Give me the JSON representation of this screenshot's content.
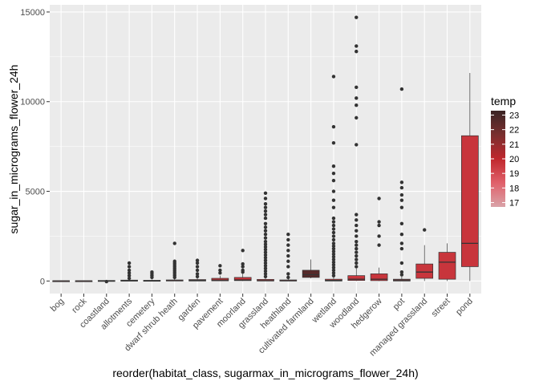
{
  "chart_data": {
    "type": "box",
    "xlabel": "reorder(habitat_class, sugarmax_in_micrograms_flower_24h)",
    "ylabel": "sugar_in_micrograms_flower_24h",
    "ylim": [
      -700,
      15400
    ],
    "yticks": [
      0,
      5000,
      10000,
      15000
    ],
    "ytick_labels": [
      "0",
      "5000",
      "10000",
      "15000"
    ],
    "grid": true,
    "panel_background": "#ebebeb",
    "categories": [
      "bog",
      "rock",
      "coastland",
      "allotments",
      "cemetery",
      "dwarf shrub heath",
      "garden",
      "pavement",
      "moorland",
      "grassland",
      "heathland",
      "cultivated farmland",
      "wetland",
      "woodland",
      "hedgerow",
      "pot",
      "managed grassland",
      "street",
      "pond"
    ],
    "boxes": [
      {
        "q1": 0,
        "median": 5,
        "q3": 15,
        "low": 0,
        "high": 25,
        "temp": 19.6,
        "outliers": []
      },
      {
        "q1": 0,
        "median": 5,
        "q3": 15,
        "low": 0,
        "high": 25,
        "temp": 19.6,
        "outliers": []
      },
      {
        "q1": 0,
        "median": 10,
        "q3": 30,
        "low": 0,
        "high": 60,
        "temp": 19.6,
        "outliers": [
          -30
        ]
      },
      {
        "q1": 0,
        "median": 10,
        "q3": 50,
        "low": 0,
        "high": 110,
        "temp": 19.6,
        "outliers": [
          150,
          300,
          450,
          600,
          800,
          1000
        ]
      },
      {
        "q1": 0,
        "median": 10,
        "q3": 40,
        "low": 0,
        "high": 90,
        "temp": 19.6,
        "outliers": [
          200,
          300,
          400,
          500
        ]
      },
      {
        "q1": 0,
        "median": 20,
        "q3": 60,
        "low": 0,
        "high": 140,
        "temp": 19.6,
        "outliers": [
          200,
          300,
          400,
          500,
          600,
          700,
          800,
          900,
          1000,
          1100,
          2100
        ]
      },
      {
        "q1": 0,
        "median": 30,
        "q3": 80,
        "low": 0,
        "high": 160,
        "temp": 19.6,
        "outliers": [
          250,
          400,
          600,
          800,
          1000,
          1150
        ]
      },
      {
        "q1": 10,
        "median": 50,
        "q3": 150,
        "low": 0,
        "high": 300,
        "temp": 19.6,
        "outliers": [
          450,
          600,
          850
        ]
      },
      {
        "q1": 20,
        "median": 60,
        "q3": 200,
        "low": 0,
        "high": 400,
        "temp": 19.6,
        "outliers": [
          500,
          600,
          800,
          950,
          1700
        ]
      },
      {
        "q1": 0,
        "median": 20,
        "q3": 90,
        "low": 0,
        "high": 200,
        "temp": 19.6,
        "outliers": [
          250,
          400,
          550,
          700,
          850,
          1000,
          1150,
          1300,
          1450,
          1600,
          1750,
          1900,
          2050,
          2200,
          2400,
          2600,
          2800,
          3000,
          3200,
          3500,
          3700,
          3900,
          4100,
          4300,
          4600,
          4900
        ]
      },
      {
        "q1": 0,
        "median": 15,
        "q3": 60,
        "low": 0,
        "high": 150,
        "temp": 19.6,
        "outliers": [
          200,
          400,
          800,
          1100,
          1400,
          1700,
          2000,
          2300,
          2600
        ]
      },
      {
        "q1": 200,
        "median": 350,
        "q3": 600,
        "low": 150,
        "high": 1200,
        "temp": 22.6,
        "outliers": []
      },
      {
        "q1": 0,
        "median": 30,
        "q3": 100,
        "low": 0,
        "high": 230,
        "temp": 19.6,
        "outliers": [
          300,
          450,
          600,
          750,
          900,
          1050,
          1200,
          1350,
          1500,
          1650,
          1800,
          1950,
          2100,
          2300,
          2500,
          2700,
          2900,
          3100,
          3300,
          3500,
          4100,
          4500,
          5000,
          5600,
          6000,
          6400,
          7700,
          8600,
          11400
        ]
      },
      {
        "q1": 30,
        "median": 100,
        "q3": 300,
        "low": 0,
        "high": 700,
        "temp": 19.6,
        "outliers": [
          800,
          1000,
          1200,
          1400,
          1600,
          1800,
          2000,
          2200,
          2500,
          2800,
          3100,
          3400,
          3700,
          7600,
          9100,
          9800,
          10200,
          10800,
          12800,
          13100,
          14700
        ]
      },
      {
        "q1": 20,
        "median": 100,
        "q3": 400,
        "low": 0,
        "high": 750,
        "temp": 19.6,
        "outliers": [
          2000,
          2500,
          3100,
          3300,
          4600
        ]
      },
      {
        "q1": 0,
        "median": 50,
        "q3": 100,
        "low": 0,
        "high": 250,
        "temp": 19.6,
        "outliers": [
          350,
          500,
          1000,
          1800,
          2100,
          2600,
          3200,
          4100,
          4500,
          4800,
          5200,
          5500,
          10700
        ]
      },
      {
        "q1": 150,
        "median": 500,
        "q3": 950,
        "low": 0,
        "high": 2000,
        "temp": 19.6,
        "outliers": [
          2850
        ]
      },
      {
        "q1": 100,
        "median": 1050,
        "q3": 1600,
        "low": 0,
        "high": 2100,
        "temp": 19.6,
        "outliers": []
      },
      {
        "q1": 800,
        "median": 2100,
        "q3": 8100,
        "low": 0,
        "high": 11600,
        "temp": 19.6,
        "outliers": []
      }
    ],
    "legend": {
      "title": "temp",
      "labels": [
        "23",
        "22",
        "21",
        "20",
        "19",
        "18",
        "17"
      ],
      "range": [
        16.7,
        23.3
      ],
      "placement": "right",
      "color_stops": [
        "#d9a3a8",
        "#e0606a",
        "#c0272d",
        "#7a2f2f",
        "#3b2424"
      ]
    },
    "colors": {
      "box_default": "#808080",
      "points": "#333333",
      "gridline": "#ffffff"
    }
  }
}
